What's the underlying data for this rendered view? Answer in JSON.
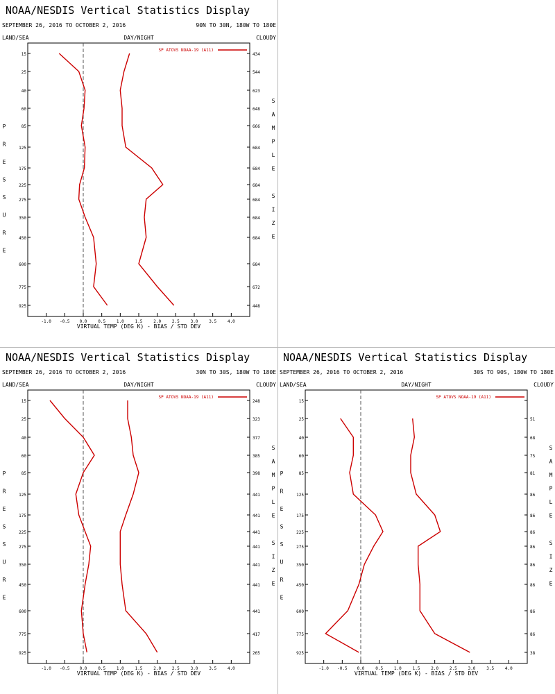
{
  "chart_data": [
    {
      "type": "line",
      "title": "NOAA/NESDIS Vertical Statistics Display",
      "date_range": "SEPTEMBER 26, 2016 TO OCTOBER 2, 2016",
      "region": "90N TO 30N, 180W TO 180E",
      "labels": {
        "left": "LAND/SEA",
        "center": "DAY/NIGHT",
        "right": "CLOUDY"
      },
      "ylabel": "PRESSURE",
      "right_axis_label": "SAMPLE SIZE",
      "xlabel": "VIRTUAL TEMP (DEG K) - BIAS / STD DEV",
      "legend": "SP ATOVS NOAA-19 (A11)",
      "legend_position": "top-right",
      "color": "#cc0000",
      "xlim": [
        -1.5,
        4.5
      ],
      "x_ticks": [
        "-1.0",
        "-0.5",
        "0.0",
        "0.5",
        "1.0",
        "1.5",
        "2.0",
        "2.5",
        "3.0",
        "3.5",
        "4.0"
      ],
      "pressure_levels": [
        "15",
        "25",
        "40",
        "60",
        "85",
        "125",
        "175",
        "225",
        "275",
        "350",
        "450",
        "600",
        "775",
        "925"
      ],
      "sample_size": [
        "434",
        "544",
        "623",
        "648",
        "666",
        "684",
        "684",
        "684",
        "684",
        "684",
        "684",
        "684",
        "672",
        "448"
      ],
      "series": [
        {
          "name": "bias",
          "values": [
            -0.65,
            -0.12,
            0.05,
            0.02,
            -0.05,
            0.05,
            0.03,
            -0.1,
            -0.12,
            0.05,
            0.28,
            0.35,
            0.28,
            0.65
          ]
        },
        {
          "name": "std_dev",
          "values": [
            1.25,
            1.1,
            1.0,
            1.05,
            1.05,
            1.15,
            1.85,
            2.15,
            1.7,
            1.65,
            1.7,
            1.5,
            2.0,
            2.45
          ]
        }
      ]
    },
    {
      "type": "line",
      "title": "NOAA/NESDIS Vertical Statistics Display",
      "date_range": "SEPTEMBER 26, 2016 TO OCTOBER 2, 2016",
      "region": "30N TO 30S, 180W TO 180E",
      "labels": {
        "left": "LAND/SEA",
        "center": "DAY/NIGHT",
        "right": "CLOUDY"
      },
      "ylabel": "PRESSURE",
      "right_axis_label": "SAMPLE SIZE",
      "xlabel": "VIRTUAL TEMP (DEG K) - BIAS / STD DEV",
      "legend": "SP ATOVS NOAA-19 (A11)",
      "legend_position": "top-right",
      "color": "#cc0000",
      "xlim": [
        -1.5,
        4.5
      ],
      "x_ticks": [
        "-1.0",
        "-0.5",
        "0.0",
        "0.5",
        "1.0",
        "1.5",
        "2.0",
        "2.5",
        "3.0",
        "3.5",
        "4.0"
      ],
      "pressure_levels": [
        "15",
        "25",
        "40",
        "60",
        "85",
        "125",
        "175",
        "225",
        "275",
        "350",
        "450",
        "600",
        "775",
        "925"
      ],
      "sample_size": [
        "248",
        "323",
        "377",
        "385",
        "398",
        "441",
        "441",
        "441",
        "441",
        "441",
        "441",
        "441",
        "417",
        "265"
      ],
      "series": [
        {
          "name": "bias",
          "values": [
            -0.9,
            -0.5,
            0.0,
            0.3,
            0.0,
            -0.2,
            -0.12,
            0.05,
            0.2,
            0.15,
            0.05,
            -0.05,
            0.0,
            0.1
          ]
        },
        {
          "name": "std_dev",
          "values": [
            1.2,
            1.2,
            1.3,
            1.35,
            1.5,
            1.35,
            1.15,
            1.0,
            1.0,
            1.0,
            1.05,
            1.15,
            1.7,
            2.0
          ]
        }
      ]
    },
    {
      "type": "line",
      "title": "NOAA/NESDIS Vertical Statistics Display",
      "date_range": "SEPTEMBER 26, 2016 TO OCTOBER 2, 2016",
      "region": "30S TO 90S, 180W TO 180E",
      "labels": {
        "left": "LAND/SEA",
        "center": "DAY/NIGHT",
        "right": "CLOUDY"
      },
      "ylabel": "PRESSURE",
      "right_axis_label": "SAMPLE SIZE",
      "xlabel": "VIRTUAL TEMP (DEG K) - BIAS / STD DEV",
      "legend": "SP ATOVS NOAA-19 (A11)",
      "legend_position": "top-right",
      "color": "#cc0000",
      "xlim": [
        -1.5,
        4.5
      ],
      "x_ticks": [
        "-1.0",
        "-0.5",
        "0.0",
        "0.5",
        "1.0",
        "1.5",
        "2.0",
        "2.5",
        "3.0",
        "3.5",
        "4.0"
      ],
      "pressure_levels": [
        "15",
        "25",
        "40",
        "60",
        "85",
        "125",
        "175",
        "225",
        "275",
        "350",
        "450",
        "600",
        "775",
        "925"
      ],
      "sample_size": [
        "",
        "51",
        "68",
        "75",
        "81",
        "86",
        "86",
        "86",
        "86",
        "86",
        "86",
        "86",
        "86",
        "38"
      ],
      "series": [
        {
          "name": "bias",
          "start_index": 1,
          "values": [
            -0.55,
            -0.2,
            -0.2,
            -0.3,
            -0.2,
            0.4,
            0.6,
            0.35,
            0.1,
            -0.05,
            -0.35,
            -0.95,
            -0.05
          ]
        },
        {
          "name": "std_dev",
          "start_index": 1,
          "values": [
            1.4,
            1.45,
            1.35,
            1.35,
            1.5,
            2.0,
            2.15,
            1.55,
            1.55,
            1.6,
            1.6,
            2.0,
            2.95
          ]
        }
      ]
    }
  ]
}
